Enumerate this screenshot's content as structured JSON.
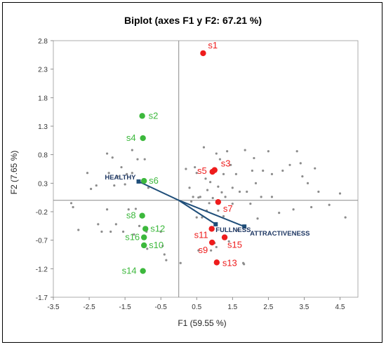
{
  "chart_data": {
    "type": "scatter",
    "title": "Biplot (axes F1 y F2: 67.21 %)",
    "xlabel": "F1 (59.55 %)",
    "ylabel": "F2 (7.65 %)",
    "xlim": [
      -3.5,
      5.0
    ],
    "ylim": [
      -1.7,
      2.8
    ],
    "xticks": [
      "-3.5",
      "-2.5",
      "-1.5",
      "-0.5",
      "0.5",
      "1.5",
      "2.5",
      "3.5",
      "4.5"
    ],
    "yticks": [
      "2.8",
      "2.3",
      "1.8",
      "1.3",
      "0.8",
      "0.3",
      "-0.2",
      "-0.7",
      "-1.2",
      "-1.7"
    ],
    "colors": {
      "green": "#3cb83c",
      "red": "#ee1c1c",
      "vector": "#1f4e79",
      "label": "#1f3864",
      "gray": "#8c8c8c"
    },
    "samples": [
      {
        "label": "s1",
        "x": 0.68,
        "y": 2.58,
        "group": "red"
      },
      {
        "label": "s2",
        "x": -1.02,
        "y": 1.48,
        "group": "green"
      },
      {
        "label": "s4",
        "x": -1.0,
        "y": 1.09,
        "group": "green"
      },
      {
        "label": "s3",
        "x": 1.0,
        "y": 0.53,
        "group": "red"
      },
      {
        "label": "s5",
        "x": 0.94,
        "y": 0.5,
        "group": "red"
      },
      {
        "label": "s6",
        "x": -0.97,
        "y": 0.34,
        "group": "green"
      },
      {
        "label": "s7",
        "x": 1.1,
        "y": -0.03,
        "group": "red"
      },
      {
        "label": "s8",
        "x": -1.02,
        "y": -0.27,
        "group": "green"
      },
      {
        "label": "s12",
        "x": -0.93,
        "y": -0.5,
        "group": "green"
      },
      {
        "label": "s11",
        "x": 0.92,
        "y": -0.5,
        "group": "red"
      },
      {
        "label": "s16",
        "x": -0.97,
        "y": -0.65,
        "group": "green"
      },
      {
        "label": "s15",
        "x": 1.28,
        "y": -0.65,
        "group": "red"
      },
      {
        "label": "s10",
        "x": -0.97,
        "y": -0.79,
        "group": "green"
      },
      {
        "label": "s9",
        "x": 0.93,
        "y": -0.74,
        "group": "red"
      },
      {
        "label": "s13",
        "x": 1.06,
        "y": -1.09,
        "group": "red"
      },
      {
        "label": "s14",
        "x": -1.0,
        "y": -1.24,
        "group": "green"
      }
    ],
    "variables": [
      {
        "label": "HEALTHY",
        "x": -1.12,
        "y": 0.33
      },
      {
        "label": "FULLNESS",
        "x": 1.03,
        "y": -0.42
      },
      {
        "label": "ATTRACTIVENESS",
        "x": 1.83,
        "y": -0.46
      }
    ],
    "attributes": [
      [
        -3.0,
        -0.05
      ],
      [
        -2.95,
        -0.12
      ],
      [
        -2.8,
        -0.52
      ],
      [
        -2.55,
        0.48
      ],
      [
        -2.45,
        0.2
      ],
      [
        -2.3,
        0.26
      ],
      [
        -2.25,
        -0.42
      ],
      [
        -2.15,
        -0.55
      ],
      [
        -2.0,
        0.82
      ],
      [
        -2.0,
        -0.16
      ],
      [
        -1.95,
        0.48
      ],
      [
        -1.9,
        -0.55
      ],
      [
        -1.85,
        0.75
      ],
      [
        -1.8,
        0.26
      ],
      [
        -1.75,
        -0.42
      ],
      [
        -1.7,
        0.42
      ],
      [
        -1.6,
        0.58
      ],
      [
        -1.55,
        -0.55
      ],
      [
        -1.5,
        0.28
      ],
      [
        -1.45,
        0.46
      ],
      [
        -1.4,
        -0.16
      ],
      [
        -1.3,
        0.88
      ],
      [
        -1.3,
        0.48
      ],
      [
        -1.25,
        -0.6
      ],
      [
        -1.2,
        -0.15
      ],
      [
        -1.15,
        0.72
      ],
      [
        -1.1,
        -0.45
      ],
      [
        -0.95,
        0.72
      ],
      [
        -0.9,
        -0.55
      ],
      [
        -0.88,
        -0.85
      ],
      [
        -0.85,
        0.22
      ],
      [
        -0.5,
        -0.55
      ],
      [
        -0.45,
        -0.8
      ],
      [
        -0.4,
        -0.95
      ],
      [
        -0.35,
        -1.05
      ],
      [
        0.05,
        -1.1
      ],
      [
        0.2,
        0.55
      ],
      [
        0.3,
        0.22
      ],
      [
        0.35,
        -0.02
      ],
      [
        0.4,
        0.06
      ],
      [
        0.45,
        0.58
      ],
      [
        0.5,
        0.48
      ],
      [
        0.5,
        -0.3
      ],
      [
        0.55,
        0.05
      ],
      [
        0.55,
        -0.88
      ],
      [
        0.6,
        0.06
      ],
      [
        0.65,
        -0.3
      ],
      [
        0.7,
        0.93
      ],
      [
        0.75,
        0.38
      ],
      [
        0.78,
        -0.18
      ],
      [
        0.8,
        0.18
      ],
      [
        0.85,
        -0.05
      ],
      [
        0.88,
        0.32
      ],
      [
        0.9,
        -0.88
      ],
      [
        0.95,
        0.04
      ],
      [
        1.0,
        -0.75
      ],
      [
        1.05,
        -0.82
      ],
      [
        1.05,
        0.82
      ],
      [
        1.1,
        0.24
      ],
      [
        1.1,
        -0.18
      ],
      [
        1.15,
        0.72
      ],
      [
        1.2,
        0.14
      ],
      [
        1.25,
        -0.28
      ],
      [
        1.25,
        0.46
      ],
      [
        1.3,
        0.06
      ],
      [
        1.35,
        0.86
      ],
      [
        1.4,
        -0.72
      ],
      [
        1.45,
        0.62
      ],
      [
        1.5,
        0.22
      ],
      [
        1.5,
        -0.06
      ],
      [
        1.6,
        0.46
      ],
      [
        1.65,
        -0.52
      ],
      [
        1.7,
        0.15
      ],
      [
        1.8,
        -1.1
      ],
      [
        1.82,
        -1.12
      ],
      [
        1.85,
        0.88
      ],
      [
        1.9,
        0.15
      ],
      [
        2.0,
        -0.06
      ],
      [
        2.05,
        0.52
      ],
      [
        2.1,
        0.74
      ],
      [
        2.15,
        0.3
      ],
      [
        2.2,
        -0.32
      ],
      [
        2.3,
        0.06
      ],
      [
        2.35,
        0.52
      ],
      [
        2.5,
        0.86
      ],
      [
        2.6,
        0.06
      ],
      [
        2.6,
        0.46
      ],
      [
        2.8,
        -0.22
      ],
      [
        2.9,
        0.52
      ],
      [
        3.1,
        0.62
      ],
      [
        3.2,
        -0.16
      ],
      [
        3.3,
        0.86
      ],
      [
        3.4,
        0.65
      ],
      [
        3.45,
        0.42
      ],
      [
        3.6,
        0.3
      ],
      [
        3.7,
        -0.12
      ],
      [
        3.8,
        0.56
      ],
      [
        3.9,
        0.15
      ],
      [
        4.2,
        -0.08
      ],
      [
        4.5,
        0.12
      ],
      [
        4.65,
        -0.3
      ]
    ]
  }
}
